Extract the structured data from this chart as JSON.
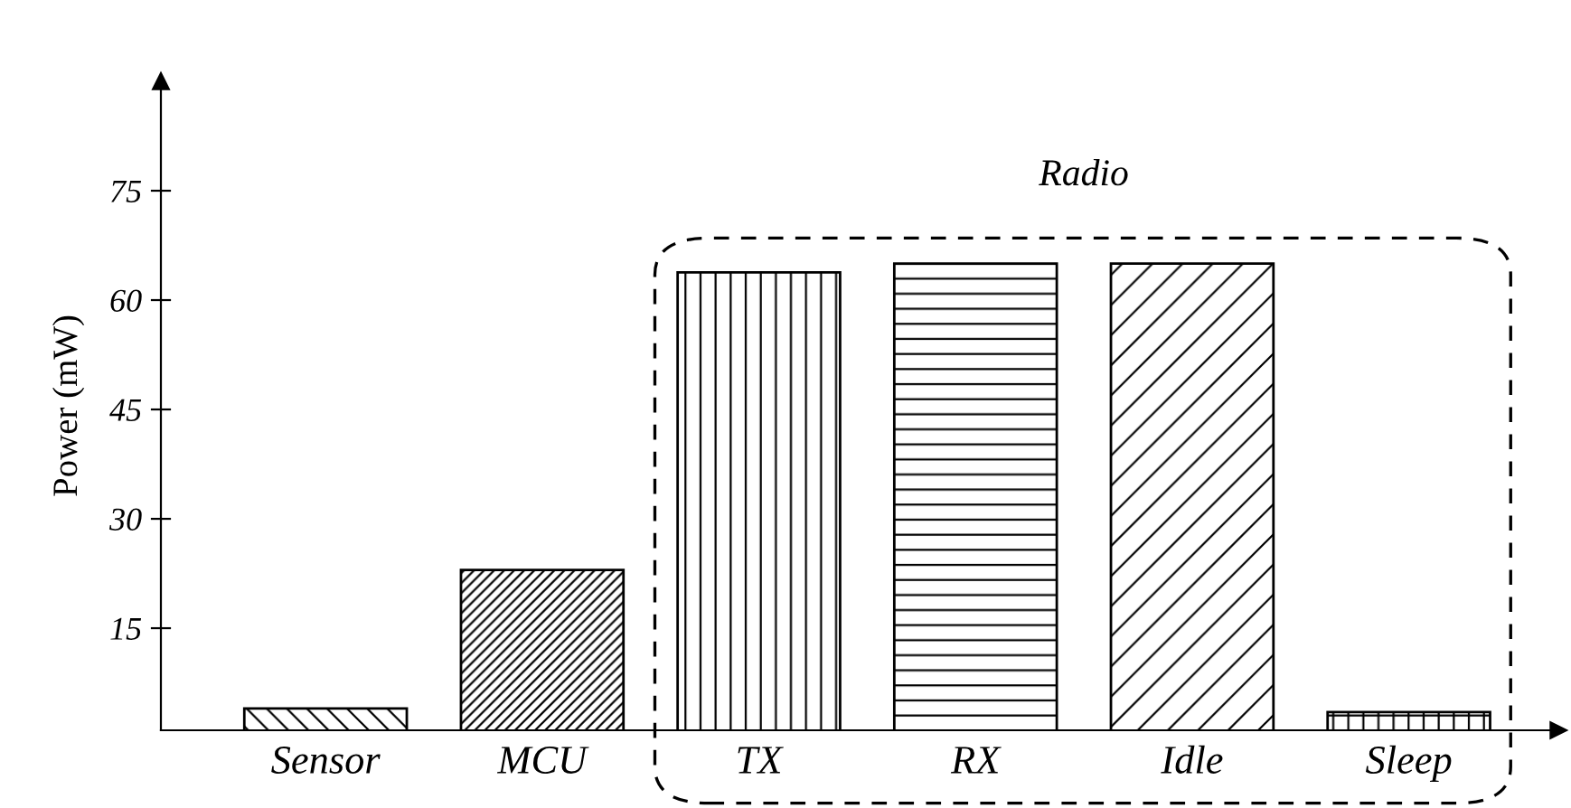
{
  "chart_data": {
    "type": "bar",
    "ylabel": "Power (mW)",
    "categories": [
      "Sensor",
      "MCU",
      "TX",
      "RX",
      "Idle",
      "Sleep"
    ],
    "values": [
      4,
      23,
      63.8,
      65,
      65,
      3.5
    ],
    "color": "#000000",
    "ylim": [
      1,
      90
    ],
    "yticks": [
      15,
      30,
      45,
      60,
      75
    ],
    "grid": false,
    "annotations": [
      "Radio"
    ]
  }
}
